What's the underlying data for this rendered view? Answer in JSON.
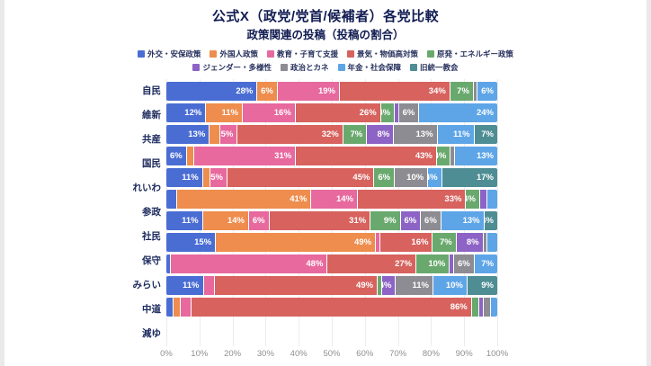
{
  "page": {
    "title": "公式X（政党/党首/候補者）各党比較",
    "subtitle": "政策関連の投稿（投稿の割合）"
  },
  "chart_data": {
    "type": "bar",
    "stacked": true,
    "orientation": "horizontal",
    "value_unit": "%",
    "xlim": [
      0,
      100
    ],
    "grid": true,
    "legend_position": "top",
    "segment_label_min_value": 4,
    "x_ticks": [
      "0%",
      "10%",
      "20%",
      "30%",
      "40%",
      "50%",
      "60%",
      "70%",
      "80%",
      "90%",
      "100%"
    ],
    "categories": [
      "自民",
      "維新",
      "共産",
      "国民",
      "れいわ",
      "参政",
      "社民",
      "保守",
      "みらい",
      "中道",
      "減ゆ"
    ],
    "series": [
      {
        "name": "外交・安保政策",
        "color": "#4a6dd4",
        "values": [
          28,
          12,
          13,
          6,
          11,
          3,
          11,
          15,
          1,
          11,
          2
        ]
      },
      {
        "name": "外国人政策",
        "color": "#ee8d4d",
        "values": [
          6,
          11,
          3,
          2,
          2,
          41,
          14,
          49,
          0,
          0,
          2
        ]
      },
      {
        "name": "教育・子育て支援",
        "color": "#e7699e",
        "values": [
          19,
          16,
          5,
          31,
          5,
          14,
          6,
          1,
          48,
          3,
          3
        ]
      },
      {
        "name": "景気・物価高対策",
        "color": "#d7625e",
        "values": [
          34,
          26,
          32,
          43,
          45,
          33,
          31,
          16,
          27,
          49,
          86
        ]
      },
      {
        "name": "原発・エネルギー政策",
        "color": "#6aa96e",
        "values": [
          7,
          4,
          7,
          4,
          6,
          4,
          9,
          7,
          10,
          1,
          2
        ]
      },
      {
        "name": "ジェンダー・多様性",
        "color": "#8d63c6",
        "values": [
          0,
          1,
          8,
          0,
          0,
          2,
          6,
          8,
          1,
          4,
          1
        ]
      },
      {
        "name": "政治とカネ",
        "color": "#8c8c92",
        "values": [
          1,
          6,
          13,
          1,
          10,
          0,
          6,
          1,
          6,
          11,
          2
        ]
      },
      {
        "name": "年金・社会保障",
        "color": "#5ea5e7",
        "values": [
          6,
          24,
          11,
          13,
          4,
          3,
          13,
          3,
          7,
          10,
          2
        ]
      },
      {
        "name": "旧統一教会",
        "color": "#4e8d94",
        "values": [
          0,
          0,
          7,
          0,
          17,
          0,
          4,
          0,
          0,
          9,
          0
        ]
      }
    ]
  }
}
